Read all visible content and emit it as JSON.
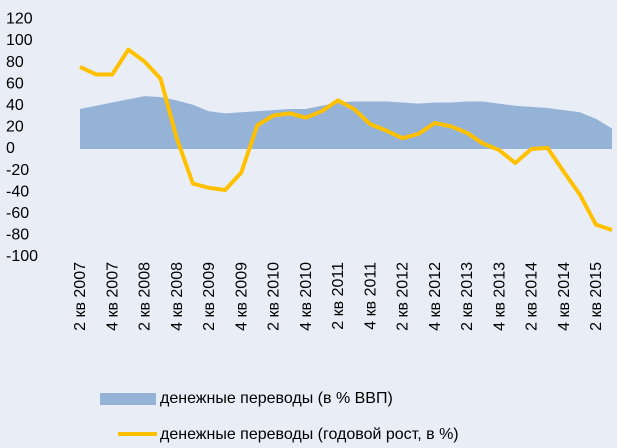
{
  "chart_data": {
    "type": "area_line",
    "categories": [
      "2 кв 2007",
      null,
      "4 кв 2007",
      null,
      "2 кв 2008",
      null,
      "4 кв 2008",
      null,
      "2 кв 2009",
      null,
      "4 кв 2009",
      null,
      "2 кв 2010",
      null,
      "4 кв 2010",
      null,
      "2 кв 2011",
      null,
      "4 кв 2011",
      null,
      "2 кв 2012",
      null,
      "4 кв 2012",
      null,
      "2 кв 2013",
      null,
      "4 кв 2013",
      null,
      "2 кв 2014",
      null,
      "4 кв 2014",
      null,
      "2 кв 2015",
      null
    ],
    "series": [
      {
        "name": "денежные переводы (в % ВВП)",
        "type": "area",
        "color": "#95b3d7",
        "values": [
          37,
          40,
          43,
          46,
          49,
          48,
          45,
          41,
          35,
          33,
          34,
          35,
          36,
          37,
          37,
          40,
          43,
          44,
          44,
          44,
          43,
          42,
          43,
          43,
          44,
          44,
          42,
          40,
          39,
          38,
          36,
          34,
          28,
          19
        ]
      },
      {
        "name": "денежные переводы (годовой рост, в %)",
        "type": "line",
        "color": "#ffc000",
        "values": [
          76,
          69,
          69,
          92,
          81,
          65,
          10,
          -32,
          -36,
          -38,
          -22,
          22,
          31,
          33,
          29,
          35,
          45,
          37,
          23,
          17,
          10,
          14,
          24,
          21,
          15,
          5,
          -1,
          -13,
          0,
          1,
          -21,
          -42,
          -70,
          -75
        ]
      }
    ],
    "ylim": [
      -100,
      120
    ],
    "yticks": [
      -100,
      -80,
      -60,
      -40,
      -20,
      0,
      20,
      40,
      60,
      80,
      100,
      120
    ]
  }
}
